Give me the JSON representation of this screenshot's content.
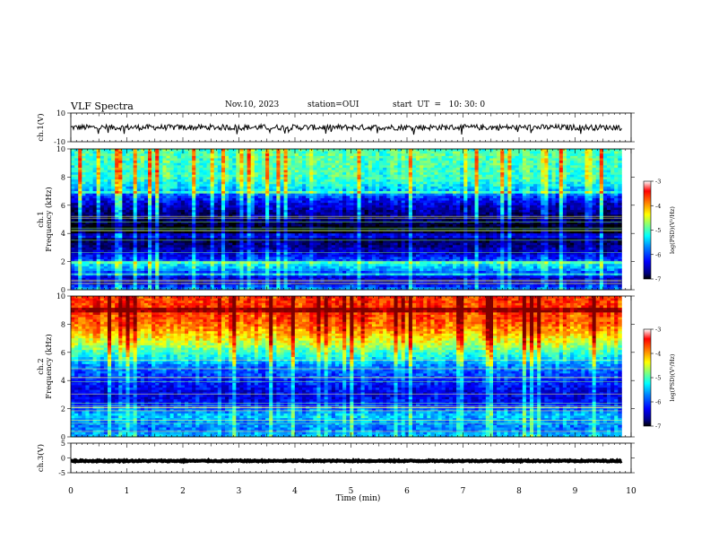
{
  "header": {
    "title": "VLF Spectra",
    "date": "Nov.10, 2023",
    "station": "station=OUI",
    "start_ut": "start  UT  =   10: 30: 0"
  },
  "chart_data": [
    {
      "type": "line",
      "panel": "ch1-waveform",
      "ylabel": "ch.1(V)",
      "ylim": [
        -10,
        10
      ],
      "yticks": [
        "10",
        "-10"
      ],
      "xlim": [
        0,
        10
      ],
      "series": [
        {
          "values_mean": 0,
          "values_range": [
            -2,
            2
          ]
        }
      ],
      "grid": false
    },
    {
      "type": "heatmap",
      "panel": "ch1-spectrogram",
      "ylabel": "ch.1\nFrequency (kHz)",
      "ylim": [
        0,
        10
      ],
      "yticks": [
        "0",
        "2",
        "4",
        "6",
        "8",
        "10"
      ],
      "xlim": [
        0,
        10
      ],
      "data_xmax": 9.83,
      "colorbar": {
        "label": "log(PSD)(V²/Hz)",
        "range": [
          -7,
          -3
        ],
        "ticks": [
          "-3",
          "-4",
          "-5",
          "-6",
          "-7"
        ]
      },
      "profile_khz": [
        0,
        0.5,
        1,
        1.5,
        1.8,
        2,
        2.5,
        3,
        3.5,
        4,
        4.5,
        5,
        5.5,
        6,
        6.5,
        7,
        7.5,
        8,
        8.5,
        9,
        9.5,
        10
      ],
      "profile_log_psd": [
        -5.6,
        -6.3,
        -6.2,
        -5.5,
        -5.3,
        -5.8,
        -6.2,
        -6.5,
        -6.7,
        -6.9,
        -6.9,
        -6.6,
        -6.5,
        -6.3,
        -6.0,
        -5.5,
        -5.2,
        -5.0,
        -5.0,
        -5.0,
        -4.9,
        -5.0
      ],
      "grid": false
    },
    {
      "type": "heatmap",
      "panel": "ch2-spectrogram",
      "ylabel": "ch.2\nFrequency (kHz)",
      "ylim": [
        0,
        10
      ],
      "yticks": [
        "0",
        "2",
        "4",
        "6",
        "8",
        "10"
      ],
      "xlim": [
        0,
        10
      ],
      "data_xmax": 9.83,
      "colorbar": {
        "label": "log(PSD)(V²/Hz)",
        "range": [
          -7,
          -3
        ],
        "ticks": [
          "-3",
          "-4",
          "-5",
          "-6",
          "-7"
        ]
      },
      "profile_khz": [
        0,
        0.5,
        1,
        1.5,
        2,
        2.5,
        3,
        3.5,
        4,
        4.5,
        5,
        5.5,
        6,
        6.5,
        7,
        7.5,
        8,
        8.5,
        9,
        9.5,
        10
      ],
      "profile_log_psd": [
        -5.4,
        -5.7,
        -5.6,
        -5.4,
        -5.8,
        -6.1,
        -6.2,
        -6.1,
        -6.0,
        -5.8,
        -5.7,
        -5.3,
        -5.0,
        -4.6,
        -4.3,
        -4.0,
        -3.8,
        -3.7,
        -3.6,
        -3.6,
        -3.6
      ],
      "grid": false
    },
    {
      "type": "line",
      "panel": "ch3-waveform",
      "ylabel": "ch.3(V)",
      "ylim": [
        -5,
        5
      ],
      "yticks": [
        "5",
        "0",
        "-5"
      ],
      "xlim": [
        0,
        10
      ],
      "series": [
        {
          "values_mean": -1,
          "values_range": [
            -1.2,
            -0.8
          ]
        }
      ],
      "grid": false
    }
  ],
  "xaxis": {
    "label": "Time (min)",
    "ticks": [
      "0",
      "1",
      "2",
      "3",
      "4",
      "5",
      "6",
      "7",
      "8",
      "9",
      "10"
    ]
  },
  "colors": {
    "axis": "#000000",
    "background": "#ffffff",
    "colormap": [
      "#000000",
      "#00007f",
      "#0000ff",
      "#007fff",
      "#00ffff",
      "#7fff7f",
      "#ffff00",
      "#ff7f00",
      "#ff0000",
      "#7f0000"
    ]
  }
}
